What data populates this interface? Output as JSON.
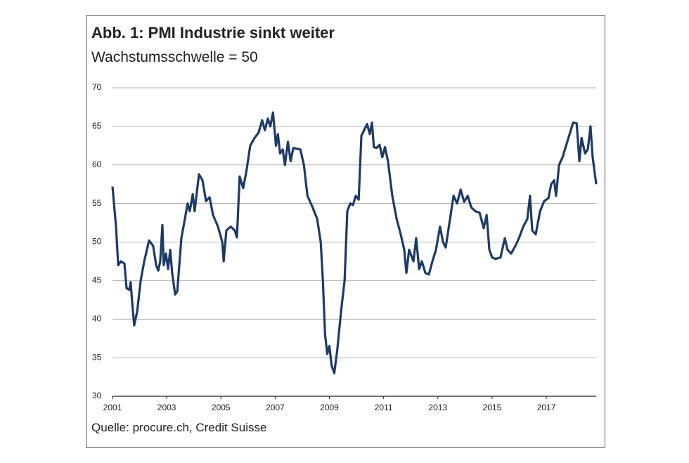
{
  "chart_data": {
    "type": "line",
    "title": "Abb. 1: PMI Industrie sinkt weiter",
    "subtitle": "Wachstumsschwelle = 50",
    "source": "Quelle: procure.ch, Credit Suisse",
    "color": "#1e3a66",
    "grid": true,
    "xlim": [
      2001,
      2018.84
    ],
    "ylim": [
      30,
      70
    ],
    "xticks": [
      2001,
      2003,
      2005,
      2007,
      2009,
      2011,
      2013,
      2015,
      2017
    ],
    "yticks": [
      30,
      35,
      40,
      45,
      50,
      55,
      60,
      65,
      70
    ],
    "x": [
      2001.0,
      2001.13,
      2001.21,
      2001.31,
      2001.44,
      2001.52,
      2001.62,
      2001.67,
      2001.73,
      2001.8,
      2001.91,
      2002.04,
      2002.17,
      2002.35,
      2002.5,
      2002.61,
      2002.69,
      2002.76,
      2002.84,
      2002.89,
      2002.97,
      2003.05,
      2003.13,
      2003.2,
      2003.31,
      2003.39,
      2003.54,
      2003.67,
      2003.77,
      2003.85,
      2003.96,
      2004.03,
      2004.19,
      2004.32,
      2004.45,
      2004.58,
      2004.71,
      2004.89,
      2005.05,
      2005.1,
      2005.2,
      2005.36,
      2005.51,
      2005.59,
      2005.69,
      2005.82,
      2005.93,
      2006.08,
      2006.24,
      2006.39,
      2006.52,
      2006.62,
      2006.73,
      2006.82,
      2006.92,
      2007.03,
      2007.1,
      2007.18,
      2007.28,
      2007.36,
      2007.47,
      2007.57,
      2007.67,
      2007.93,
      2008.06,
      2008.19,
      2008.38,
      2008.55,
      2008.68,
      2008.76,
      2008.84,
      2008.92,
      2009.0,
      2009.08,
      2009.18,
      2009.29,
      2009.43,
      2009.56,
      2009.66,
      2009.77,
      2009.87,
      2009.97,
      2010.08,
      2010.18,
      2010.28,
      2010.39,
      2010.49,
      2010.57,
      2010.64,
      2010.74,
      2010.85,
      2010.95,
      2011.05,
      2011.16,
      2011.32,
      2011.48,
      2011.63,
      2011.76,
      2011.84,
      2011.94,
      2012.1,
      2012.2,
      2012.31,
      2012.41,
      2012.54,
      2012.67,
      2012.8,
      2012.93,
      2013.08,
      2013.19,
      2013.29,
      2013.45,
      2013.58,
      2013.71,
      2013.84,
      2013.97,
      2014.1,
      2014.23,
      2014.38,
      2014.54,
      2014.69,
      2014.8,
      2014.9,
      2015.0,
      2015.13,
      2015.31,
      2015.47,
      2015.57,
      2015.7,
      2015.86,
      2015.99,
      2016.15,
      2016.3,
      2016.4,
      2016.48,
      2016.61,
      2016.77,
      2016.92,
      2017.08,
      2017.18,
      2017.29,
      2017.36,
      2017.47,
      2017.6,
      2017.73,
      2017.86,
      2017.99,
      2018.12,
      2018.22,
      2018.3,
      2018.43,
      2018.53,
      2018.63,
      2018.71,
      2018.84
    ],
    "values": [
      57.2,
      52,
      47,
      47.5,
      47.2,
      44,
      43.8,
      44.8,
      42,
      39.2,
      41,
      45,
      47.5,
      50.2,
      49.5,
      47,
      46.3,
      47.5,
      52.2,
      47,
      48.5,
      46.5,
      49,
      46,
      43.2,
      43.6,
      50.5,
      53,
      55,
      54,
      56.2,
      54,
      58.8,
      58,
      55.3,
      55.8,
      53.5,
      52,
      50,
      47.5,
      51.5,
      52,
      51.5,
      50.6,
      58.5,
      57,
      59,
      62.5,
      63.5,
      64.2,
      65.8,
      64.5,
      66,
      65,
      66.8,
      62.5,
      64,
      61.5,
      62,
      60,
      63,
      60.5,
      62.2,
      62,
      60,
      56,
      54.5,
      53,
      50,
      45,
      38,
      35.5,
      36.5,
      34,
      33,
      36,
      41,
      45,
      54,
      55,
      54.8,
      56,
      55.5,
      63.8,
      64.5,
      65.3,
      64,
      65.5,
      62.3,
      62.2,
      62.6,
      61,
      62.3,
      60.5,
      56,
      53,
      51,
      49,
      46,
      49,
      47.5,
      50.5,
      46.5,
      47.5,
      46,
      45.8,
      47.5,
      49,
      52,
      50,
      49.3,
      53,
      56,
      55,
      56.8,
      55.2,
      56,
      54.5,
      54,
      53.8,
      51.8,
      53.5,
      49,
      48,
      47.8,
      48,
      50.5,
      49,
      48.5,
      49.5,
      50.5,
      52,
      53,
      56,
      51.5,
      51,
      54,
      55.3,
      55.7,
      57.5,
      58,
      56,
      60,
      61,
      62.5,
      64,
      65.5,
      65.4,
      60.5,
      63.5,
      61.5,
      62,
      65,
      61,
      57.5
    ]
  }
}
